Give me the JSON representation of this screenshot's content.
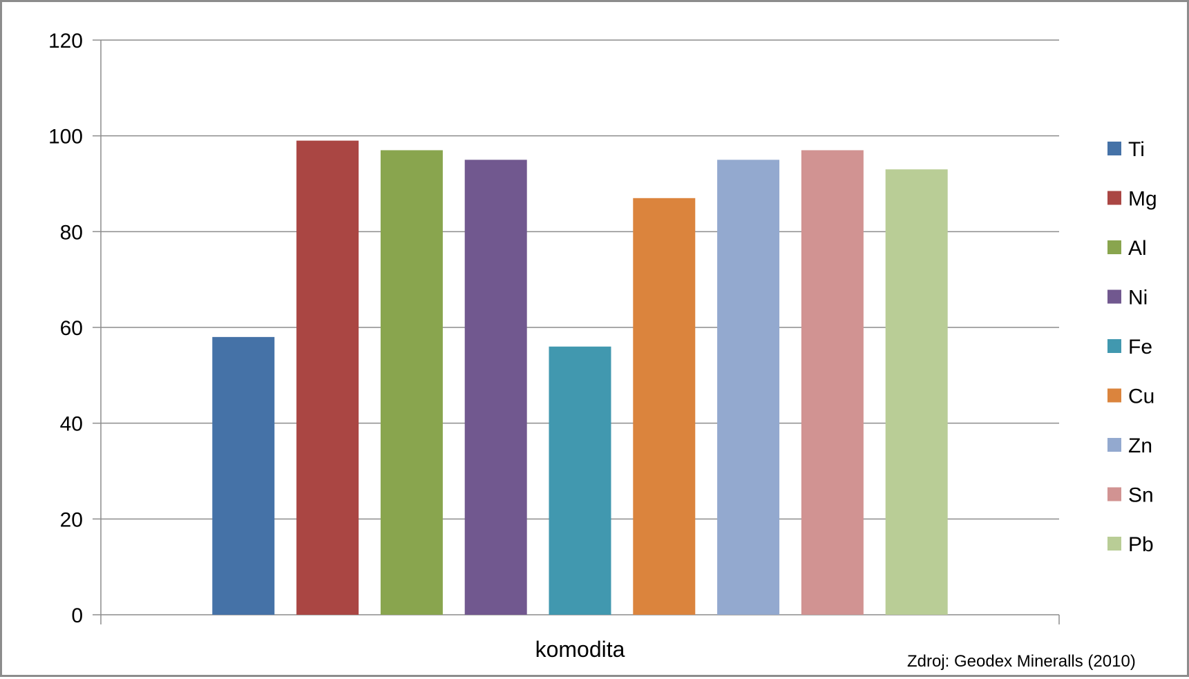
{
  "chart_data": {
    "type": "bar",
    "categories": [
      "komodita"
    ],
    "series": [
      {
        "name": "Ti",
        "values": [
          58
        ],
        "color": "#4572A7"
      },
      {
        "name": "Mg",
        "values": [
          99
        ],
        "color": "#AA4643"
      },
      {
        "name": "Al",
        "values": [
          97
        ],
        "color": "#89A54E"
      },
      {
        "name": "Ni",
        "values": [
          95
        ],
        "color": "#71588F"
      },
      {
        "name": "Fe",
        "values": [
          56
        ],
        "color": "#4198AF"
      },
      {
        "name": "Cu",
        "values": [
          87
        ],
        "color": "#DB843D"
      },
      {
        "name": "Zn",
        "values": [
          95
        ],
        "color": "#93A9CF"
      },
      {
        "name": "Sn",
        "values": [
          97
        ],
        "color": "#D19392"
      },
      {
        "name": "Pb",
        "values": [
          93
        ],
        "color": "#B9CD96"
      }
    ],
    "ylim": [
      0,
      120
    ],
    "yticks": [
      0,
      20,
      40,
      60,
      80,
      100,
      120
    ],
    "grid": true,
    "legend": "right",
    "xlabel": "",
    "ylabel": "",
    "title": ""
  },
  "source_note": "Zdroj: Geodex Mineralls (2010)"
}
